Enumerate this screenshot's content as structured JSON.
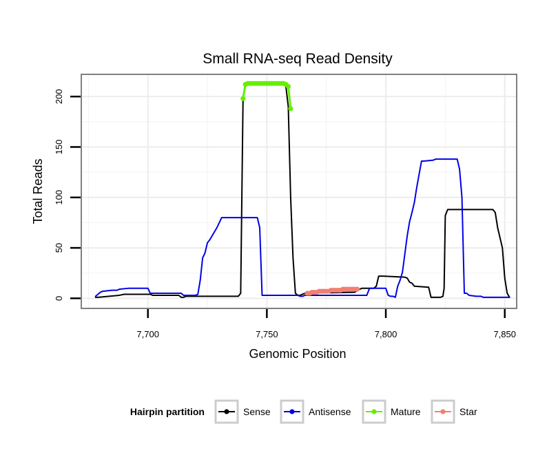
{
  "chart_data": {
    "type": "line",
    "title": "Small RNA-seq Read Density",
    "xlabel": "Genomic Position",
    "ylabel": "Total Reads",
    "xlim": [
      7672,
      7855
    ],
    "ylim": [
      -10,
      222
    ],
    "x_ticks": [
      7700,
      7750,
      7800,
      7850
    ],
    "x_tick_labels": [
      "7,700",
      "7,750",
      "7,800",
      "7,850"
    ],
    "y_ticks": [
      0,
      50,
      100,
      150,
      200
    ],
    "y_tick_labels": [
      "0",
      "50",
      "100",
      "150",
      "200"
    ],
    "grid": true,
    "legend": {
      "title": "Hairpin partition",
      "position": "bottom",
      "entries": [
        "Sense",
        "Antisense",
        "Mature",
        "Star"
      ]
    },
    "series": [
      {
        "name": "Sense",
        "color": "#000000",
        "marker": "line",
        "x": [
          7678,
          7679,
          7688,
          7690,
          7701,
          7702,
          7713,
          7714,
          7715,
          7716,
          7717,
          7738,
          7739,
          7740,
          7741,
          7742,
          7757,
          7758,
          7759,
          7760,
          7761,
          7762,
          7763,
          7764,
          7765,
          7766,
          7787,
          7788,
          7790,
          7795,
          7796,
          7797,
          7799,
          7808,
          7809,
          7810,
          7811,
          7812,
          7818,
          7819,
          7820,
          7822,
          7823,
          7824,
          7824.5,
          7825,
          7826,
          7845,
          7846,
          7847,
          7849,
          7850,
          7851,
          7852
        ],
        "y": [
          1,
          1,
          3,
          4,
          4,
          3,
          3,
          1,
          1,
          2,
          2,
          2,
          5,
          200,
          213,
          213,
          213,
          210,
          190,
          100,
          40,
          5,
          3,
          3,
          4,
          5,
          6,
          8,
          10,
          10,
          12,
          22,
          22,
          21,
          20,
          16,
          15,
          12,
          11,
          1,
          1,
          1,
          1,
          2,
          10,
          82,
          88,
          88,
          85,
          70,
          50,
          20,
          5,
          1
        ]
      },
      {
        "name": "Antisense",
        "color": "#0000e6",
        "marker": "line",
        "x": [
          7678,
          7679,
          7680,
          7681,
          7685,
          7686,
          7687,
          7688,
          7692,
          7693,
          7695,
          7700,
          7701,
          7702,
          7714,
          7715,
          7716,
          7720,
          7721,
          7722,
          7723,
          7724,
          7725,
          7726,
          7728,
          7729,
          7730,
          7731,
          7738,
          7739,
          7743,
          7744,
          7745,
          7746,
          7747,
          7748,
          7763,
          7764,
          7765,
          7766,
          7792,
          7793,
          7793.5,
          7794,
          7800,
          7801,
          7802,
          7803,
          7804,
          7805,
          7806,
          7807,
          7808,
          7809,
          7810,
          7811,
          7812,
          7813,
          7815,
          7816,
          7820,
          7821,
          7822,
          7830,
          7831,
          7832,
          7833,
          7834,
          7835,
          7838,
          7840,
          7841,
          7847,
          7848,
          7852
        ],
        "y": [
          2,
          4,
          6,
          7,
          8,
          8,
          8,
          9,
          10,
          10,
          10,
          10,
          5,
          5,
          5,
          3,
          3,
          3,
          4,
          18,
          40,
          45,
          55,
          58,
          66,
          70,
          75,
          80,
          80,
          80,
          80,
          80,
          80,
          80,
          70,
          3,
          3,
          2,
          2,
          3,
          3,
          9,
          10,
          10,
          10,
          3,
          2,
          2,
          1,
          12,
          18,
          26,
          44,
          62,
          76,
          85,
          95,
          110,
          136,
          136,
          137,
          138,
          138,
          138,
          128,
          100,
          5,
          5,
          3,
          2,
          2,
          1,
          1,
          1,
          1
        ]
      },
      {
        "name": "Mature",
        "color": "#66ee00",
        "marker": "point",
        "x": [
          7740,
          7741,
          7742,
          7743,
          7744,
          7745,
          7746,
          7747,
          7748,
          7749,
          7750,
          7751,
          7752,
          7753,
          7754,
          7755,
          7756,
          7757,
          7758,
          7759,
          7760
        ],
        "y": [
          198,
          212,
          213,
          213,
          213,
          213,
          213,
          213,
          213,
          213,
          213,
          213,
          213,
          213,
          213,
          213,
          213,
          213,
          212,
          210,
          188
        ]
      },
      {
        "name": "Star",
        "color": "#f08070",
        "marker": "point",
        "x": [
          7767,
          7768,
          7769,
          7770,
          7771,
          7772,
          7773,
          7774,
          7775,
          7776,
          7777,
          7778,
          7779,
          7780,
          7781,
          7782,
          7783,
          7784,
          7785,
          7786,
          7787,
          7788
        ],
        "y": [
          5,
          5,
          6,
          6,
          6,
          7,
          7,
          7,
          7,
          7,
          8,
          8,
          8,
          8,
          8,
          9,
          9,
          9,
          9,
          9,
          9,
          9
        ]
      }
    ]
  }
}
